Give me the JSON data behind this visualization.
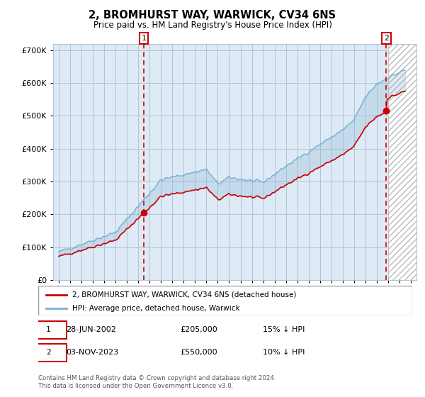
{
  "title": "2, BROMHURST WAY, WARWICK, CV34 6NS",
  "subtitle": "Price paid vs. HM Land Registry's House Price Index (HPI)",
  "ylim": [
    0,
    720000
  ],
  "yticks": [
    0,
    100000,
    200000,
    300000,
    400000,
    500000,
    600000,
    700000
  ],
  "hpi_color": "#7bafd4",
  "price_color": "#cc0000",
  "t1_x": 2002.49,
  "t1_price": 205000,
  "t1_pct_below": 0.15,
  "t2_x": 2023.84,
  "t2_price": 550000,
  "t2_pct_below": 0.1,
  "legend1": "2, BROMHURST WAY, WARWICK, CV34 6NS (detached house)",
  "legend2": "HPI: Average price, detached house, Warwick",
  "t1_date": "28-JUN-2002",
  "t2_date": "03-NOV-2023",
  "footer": "Contains HM Land Registry data © Crown copyright and database right 2024.\nThis data is licensed under the Open Government Licence v3.0.",
  "xlim_start": 1994.5,
  "xlim_end": 2026.5,
  "background_color": "#ffffff",
  "plot_bg_color": "#deeaf5",
  "grid_color": "#b0c4d8",
  "hatch_start": 2024.0
}
